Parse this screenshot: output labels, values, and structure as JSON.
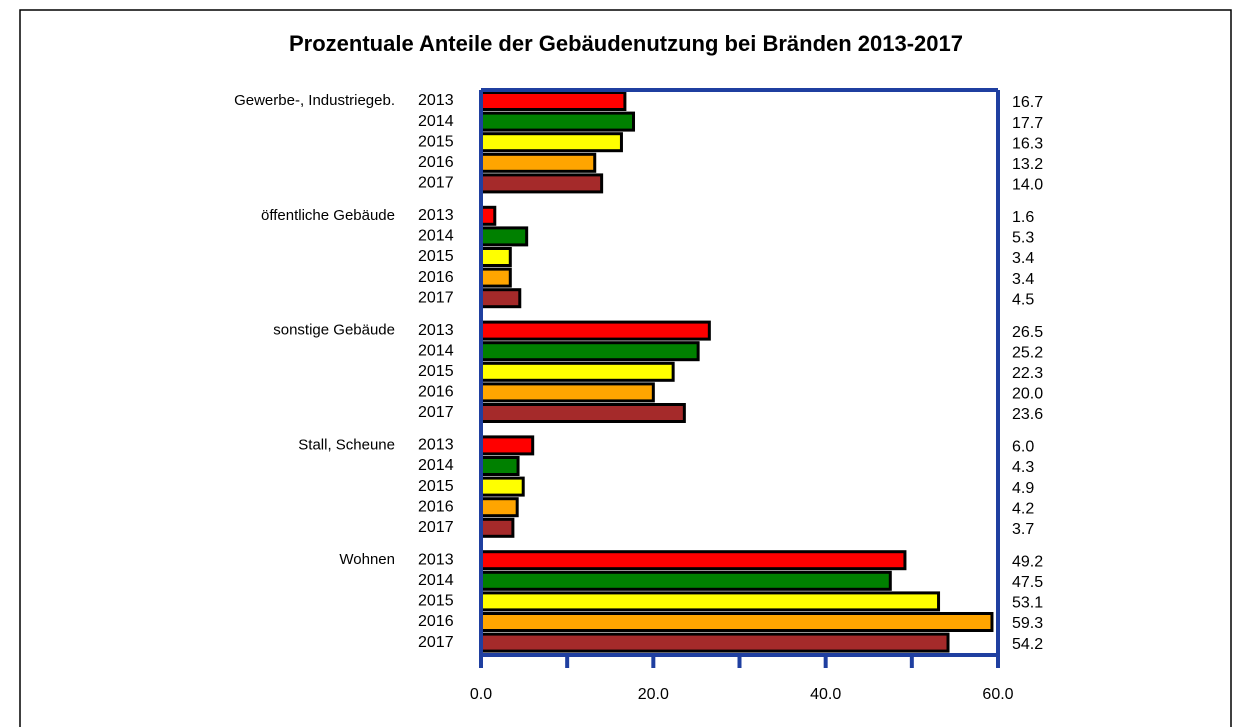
{
  "chart_data": {
    "type": "barh",
    "title": "Prozentuale Anteile der Gebäudenutzung bei Bränden 2013-2017",
    "categories": [
      "Gewerbe-, Industriegeb.",
      "öffentliche Gebäude",
      "sonstige Gebäude",
      "Stall, Scheune",
      "Wohnen"
    ],
    "series": [
      {
        "name": "2013",
        "color": "#ff0000",
        "values": [
          16.7,
          1.6,
          26.5,
          6.0,
          49.2
        ],
        "value_labels": [
          "16.7",
          "1.6",
          "26.5",
          "6.0",
          "49.2"
        ]
      },
      {
        "name": "2014",
        "color": "#008000",
        "values": [
          17.7,
          5.3,
          25.2,
          4.3,
          47.5
        ],
        "value_labels": [
          "17.7",
          "5.3",
          "25.2",
          "4.3",
          "47.5"
        ]
      },
      {
        "name": "2015",
        "color": "#ffff00",
        "values": [
          16.3,
          3.4,
          22.3,
          4.9,
          53.1
        ],
        "value_labels": [
          "16.3",
          "3.4",
          "22.3",
          "4.9",
          "53.1"
        ]
      },
      {
        "name": "2016",
        "color": "#ffa500",
        "values": [
          13.2,
          3.4,
          20.0,
          4.2,
          59.3
        ],
        "value_labels": [
          "13.2",
          "3.4",
          "20.0",
          "4.2",
          "59.3"
        ]
      },
      {
        "name": "2017",
        "color": "#a52a2a",
        "values": [
          14.0,
          4.5,
          23.6,
          3.7,
          54.2
        ],
        "value_labels": [
          "14.0",
          "4.5",
          "23.6",
          "3.7",
          "54.2"
        ]
      }
    ],
    "xlim": [
      0,
      60
    ],
    "xticks": [
      {
        "value": 0,
        "label": "0.0"
      },
      {
        "value": 20,
        "label": "20.0"
      },
      {
        "value": 40,
        "label": "40.0"
      },
      {
        "value": 60,
        "label": "60.0"
      }
    ],
    "minor_xticks": [
      10,
      30,
      50
    ],
    "axis_color": "#1f3fa0"
  }
}
